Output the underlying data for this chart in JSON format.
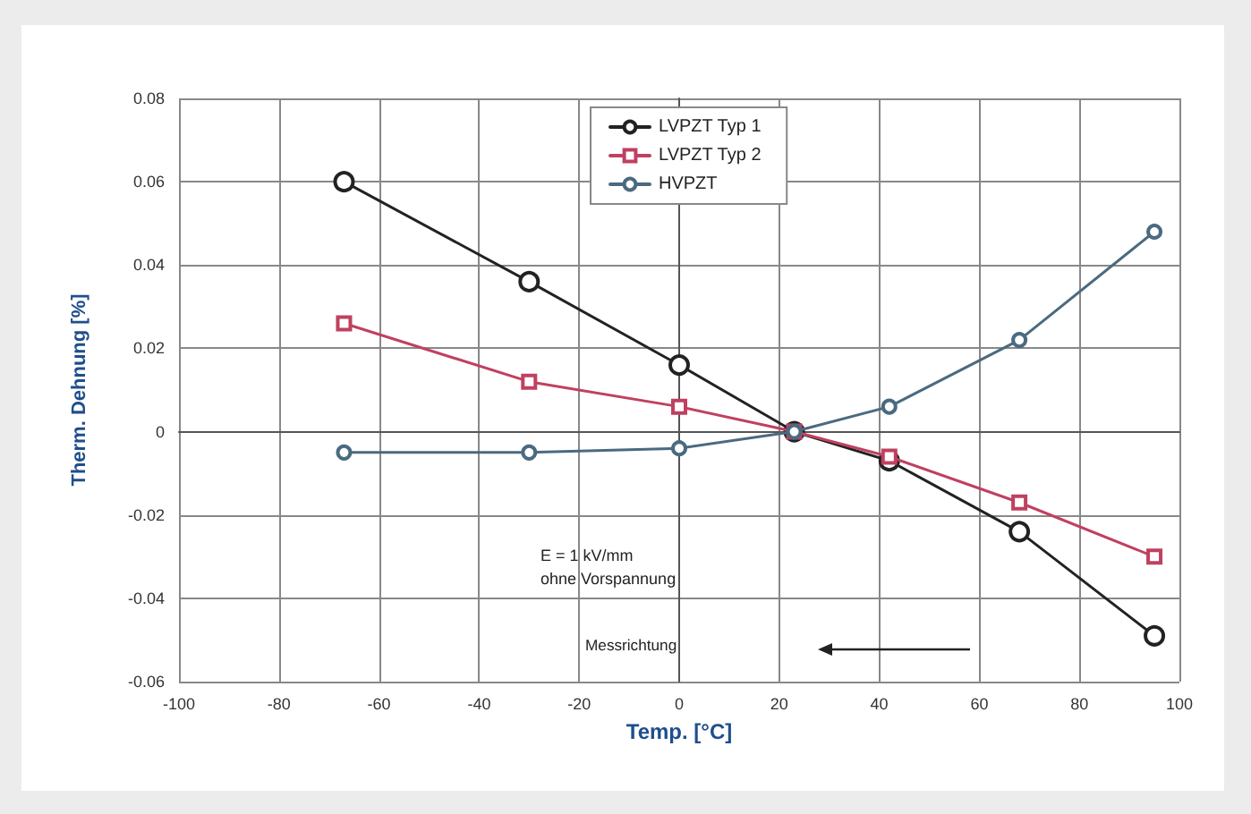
{
  "chart_data": {
    "type": "line",
    "xlabel": "Temp. [°C]",
    "ylabel": "Therm. Dehnung [%]",
    "x": [
      -67,
      -30,
      0,
      23,
      42,
      68,
      95
    ],
    "series": [
      {
        "name": "LVPZT Typ 1",
        "color": "#222222",
        "marker": "circle",
        "values": [
          0.06,
          0.036,
          0.016,
          0,
          -0.007,
          -0.024,
          -0.049
        ]
      },
      {
        "name": "LVPZT Typ 2",
        "color": "#c04060",
        "marker": "square",
        "values": [
          0.026,
          0.012,
          0.006,
          0,
          -0.006,
          -0.017,
          -0.03
        ]
      },
      {
        "name": "HVPZT",
        "color": "#4a6a80",
        "marker": "circle",
        "values": [
          -0.005,
          -0.005,
          -0.004,
          0,
          0.006,
          0.022,
          0.048
        ]
      }
    ],
    "xlim": [
      -100,
      100
    ],
    "xticks": [
      -100,
      -80,
      -60,
      -40,
      -20,
      0,
      20,
      40,
      60,
      80,
      100
    ],
    "ylim": [
      -0.06,
      0.08
    ],
    "yticks": [
      -0.06,
      -0.04,
      -0.02,
      0,
      0.02,
      0.04,
      0.06,
      0.08
    ],
    "grid": true,
    "legend": "top",
    "line_style": "solid",
    "annotations": [
      "E = 1 kV/mm",
      "ohne Vorspannung",
      "Messrichtung"
    ]
  }
}
